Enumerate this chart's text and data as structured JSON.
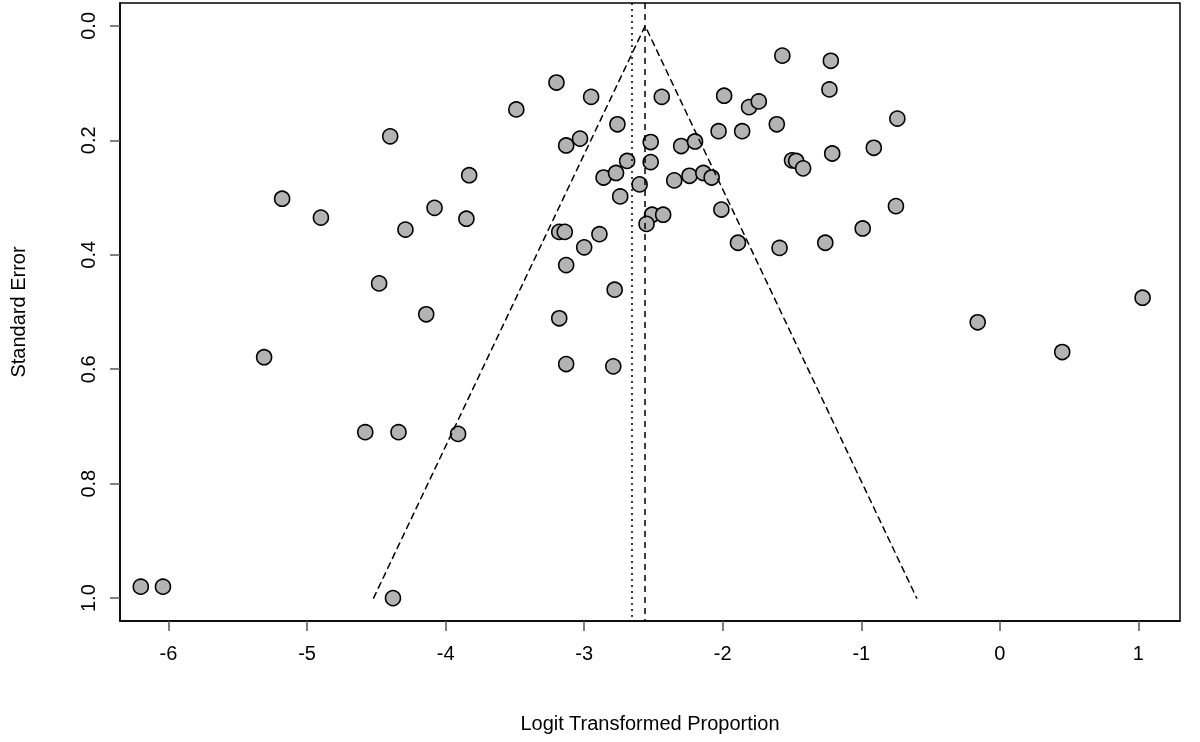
{
  "chart_data": {
    "type": "scatter",
    "xlabel": "Logit Transformed Proportion",
    "ylabel": "Standard Error",
    "xlim": [
      -6.35,
      1.3
    ],
    "xticks": [
      -6,
      -5,
      -4,
      -3,
      -2,
      -1,
      0,
      1
    ],
    "ylim": [
      1.04,
      -0.04
    ],
    "yticks": [
      {
        "value": 0,
        "label": "0.0"
      },
      0.2,
      0.4,
      0.6,
      0.8,
      {
        "value": 1,
        "label": "1.0"
      }
    ],
    "grid": false,
    "marker": "circle",
    "series": [
      {
        "color": "#b3b3b3",
        "x": [
          -6.2,
          -6.04,
          -4.4,
          -5.18,
          -4.9,
          -4.29,
          -4.48,
          -5.31,
          -4.58,
          -4.34,
          -4.38,
          -1.57,
          -3.2,
          -2.95,
          -2.44,
          -1.99,
          -1.81,
          -1.74,
          -3.49,
          -2.76,
          -1.61,
          -2.03,
          -1.86,
          -3.03,
          -3.13,
          -2.52,
          -2.3,
          -2.2,
          -1.5,
          -2.69,
          -2.52,
          -3.83,
          -2.86,
          -2.77,
          -2.6,
          -2.35,
          -2.24,
          -2.14,
          -2.08,
          -2.74,
          -4.08,
          -3.85,
          -2.51,
          -2.43,
          -2.55,
          -2.01,
          -3.18,
          -3.14,
          -2.89,
          -3.0,
          -1.89,
          -1.59,
          -3.13,
          -2.78,
          -4.14,
          -3.18,
          -3.13,
          -2.79,
          -3.91,
          -1.22,
          -1.23,
          -0.74,
          -0.91,
          -1.21,
          -1.47,
          -1.42,
          -0.75,
          -0.99,
          -1.26,
          1.03,
          -0.16,
          0.45
        ],
        "values": [
          0.98,
          0.98,
          0.193,
          0.302,
          0.335,
          0.356,
          0.45,
          0.579,
          0.71,
          0.71,
          1.0,
          0.052,
          0.099,
          0.124,
          0.124,
          0.122,
          0.142,
          0.132,
          0.146,
          0.172,
          0.172,
          0.184,
          0.184,
          0.197,
          0.209,
          0.203,
          0.21,
          0.202,
          0.235,
          0.236,
          0.238,
          0.261,
          0.265,
          0.257,
          0.277,
          0.27,
          0.262,
          0.257,
          0.265,
          0.298,
          0.318,
          0.337,
          0.33,
          0.33,
          0.346,
          0.321,
          0.36,
          0.36,
          0.364,
          0.387,
          0.379,
          0.388,
          0.418,
          0.461,
          0.504,
          0.511,
          0.591,
          0.595,
          0.713,
          0.061,
          0.111,
          0.162,
          0.213,
          0.223,
          0.236,
          0.249,
          0.315,
          0.354,
          0.379,
          0.475,
          0.518,
          0.57
        ]
      },
      {
        "type": "line",
        "color": "#000000",
        "line_style": "dashed",
        "marker": "none",
        "x": [
          -4.52,
          -2.56,
          -0.6
        ],
        "values": [
          1.0,
          0,
          1.0
        ]
      }
    ],
    "ref_lines": [
      {
        "axis": "x",
        "value": -2.56,
        "color": "#000000",
        "line_style": "dashed"
      },
      {
        "axis": "x",
        "value": -2.66,
        "color": "#000000",
        "line_style": "dotted"
      }
    ]
  }
}
